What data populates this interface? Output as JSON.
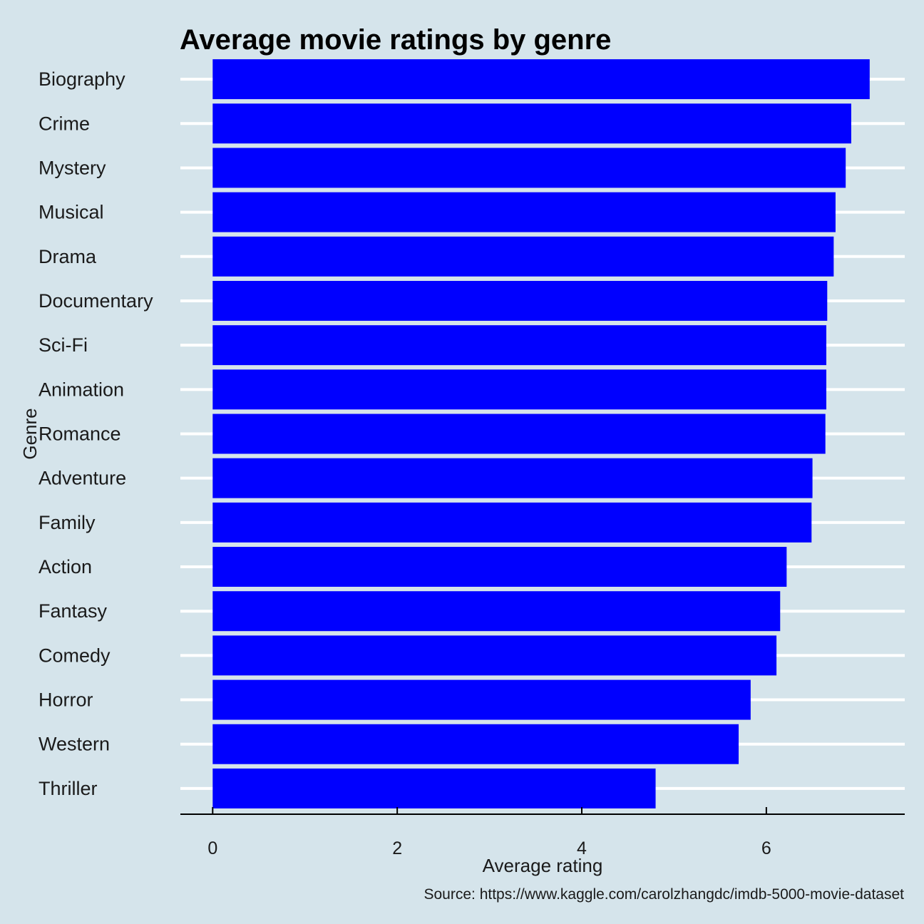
{
  "chart_data": {
    "type": "bar",
    "orientation": "horizontal",
    "title": "Average movie ratings by genre",
    "xlabel": "Average rating",
    "ylabel": "Genre",
    "caption": "Source: https://www.kaggle.com/carolzhangdc/imdb-5000-movie-dataset",
    "categories": [
      "Biography",
      "Crime",
      "Mystery",
      "Musical",
      "Drama",
      "Documentary",
      "Sci-Fi",
      "Animation",
      "Romance",
      "Adventure",
      "Family",
      "Action",
      "Fantasy",
      "Comedy",
      "Horror",
      "Western",
      "Thriller"
    ],
    "values": [
      7.12,
      6.92,
      6.86,
      6.75,
      6.73,
      6.66,
      6.65,
      6.65,
      6.64,
      6.5,
      6.49,
      6.22,
      6.15,
      6.11,
      5.83,
      5.7,
      4.8
    ],
    "xlim": [
      -0.35,
      7.5
    ],
    "xticks": [
      0,
      2,
      4,
      6
    ],
    "xtick_labels": [
      "0",
      "2",
      "4",
      "6"
    ],
    "grid": "major horizontal",
    "bar_color": "#0000ff",
    "background_color": "#d5e4eb",
    "gridline_color": "#ffffff"
  }
}
